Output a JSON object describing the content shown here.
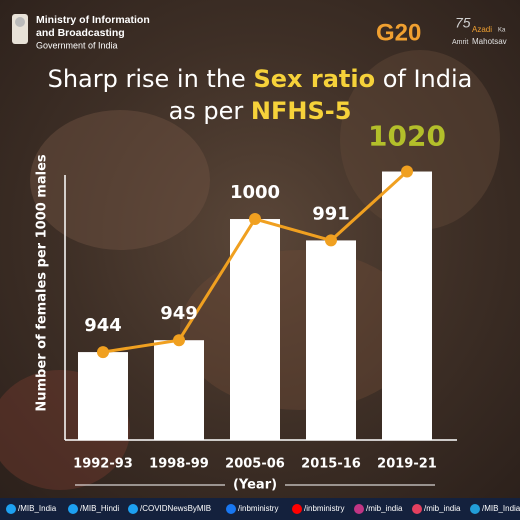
{
  "header": {
    "ministry_line1": "Ministry of Information",
    "ministry_line2": "and Broadcasting",
    "government": "Government of India",
    "g20": "G20",
    "azadi_number": "75",
    "azadi_line1": "Azadi",
    "azadi_ka": "Ka",
    "azadi_line2": "Amrit",
    "azadi_line3": "Mahotsav"
  },
  "chart_data": {
    "type": "bar",
    "title_lines": [
      [
        {
          "text": "Sharp rise in the ",
          "highlight": false
        },
        {
          "text": "Sex ratio",
          "highlight": true
        },
        {
          "text": " of India",
          "highlight": false
        }
      ],
      [
        {
          "text": "as per ",
          "highlight": false
        },
        {
          "text": "NFHS-5",
          "highlight": true
        }
      ]
    ],
    "highlight_color": "#f6d23a",
    "y_label": "Number of females per 1000 males",
    "x_label": "(Year)",
    "categories": [
      "1992-93",
      "1998-99",
      "2005-06",
      "2015-16",
      "2019-21"
    ],
    "values": [
      944,
      949,
      1000,
      991,
      1020
    ],
    "value_label_colors": [
      "#ffffff",
      "#ffffff",
      "#ffffff",
      "#ffffff",
      "#b3bf2a"
    ],
    "color": "#ffffff",
    "line_color": "#f0a020",
    "ylim": [
      907,
      1040
    ]
  },
  "footer": {
    "handles": [
      "/MIB_India",
      "/MIB_Hindi",
      "/COVIDNewsByMIB",
      "/inbministry",
      "/inbministry",
      "/mib_india",
      "/mib_india",
      "/MIB_India"
    ]
  }
}
